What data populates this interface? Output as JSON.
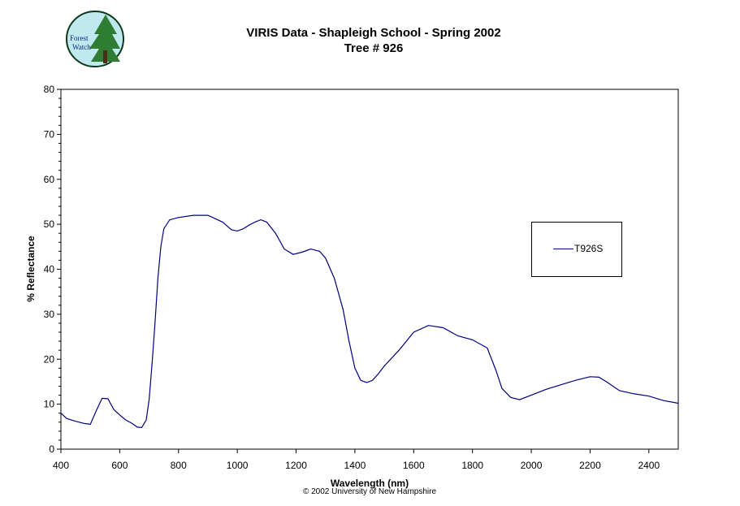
{
  "header": {
    "title": "VIRIS Data - Shapleigh School - Spring 2002",
    "subtitle": "Tree # 926",
    "logo_text_1": "Forest",
    "logo_text_2": "Watch"
  },
  "footer": {
    "copyright": "© 2002 University of New Hampshire"
  },
  "colors": {
    "series": "#000080",
    "logo_sky": "#bfe9ee",
    "logo_tree": "#2e7d32"
  },
  "chart_data": {
    "type": "line",
    "title": "VIRIS Data - Shapleigh School - Spring 2002",
    "subtitle": "Tree # 926",
    "xlabel": "Wavelength (nm)",
    "ylabel": "% Reflectance",
    "xlim": [
      400,
      2500
    ],
    "ylim": [
      0,
      80
    ],
    "xticks": [
      400,
      600,
      800,
      1000,
      1200,
      1400,
      1600,
      1800,
      2000,
      2200,
      2400
    ],
    "yticks": [
      0,
      10,
      20,
      30,
      40,
      50,
      60,
      70,
      80
    ],
    "grid": false,
    "legend_position": "right",
    "series": [
      {
        "name": "T926S",
        "x": [
          400,
          420,
          450,
          480,
          500,
          520,
          540,
          560,
          580,
          600,
          620,
          640,
          660,
          675,
          690,
          700,
          710,
          720,
          730,
          740,
          750,
          770,
          800,
          850,
          900,
          950,
          980,
          1000,
          1020,
          1040,
          1060,
          1080,
          1100,
          1130,
          1160,
          1190,
          1220,
          1250,
          1280,
          1300,
          1330,
          1360,
          1380,
          1400,
          1420,
          1440,
          1460,
          1480,
          1500,
          1550,
          1600,
          1650,
          1700,
          1750,
          1800,
          1850,
          1880,
          1900,
          1930,
          1960,
          2000,
          2050,
          2100,
          2150,
          2200,
          2230,
          2260,
          2300,
          2350,
          2400,
          2450,
          2500
        ],
        "y": [
          8,
          6.8,
          6.2,
          5.7,
          5.5,
          8.5,
          11.3,
          11.2,
          8.8,
          7.6,
          6.5,
          5.8,
          4.9,
          4.8,
          6.5,
          11,
          19,
          28,
          38,
          45,
          49,
          51,
          51.5,
          52,
          52,
          50.5,
          48.8,
          48.5,
          49,
          49.8,
          50.5,
          51,
          50.5,
          48,
          44.5,
          43.3,
          43.8,
          44.5,
          44,
          42.5,
          38,
          31,
          24,
          18,
          15.3,
          14.8,
          15.3,
          16.8,
          18.5,
          22,
          26,
          27.5,
          27,
          25.2,
          24.3,
          22.5,
          17.5,
          13.5,
          11.5,
          11,
          12,
          13.3,
          14.3,
          15.3,
          16.1,
          16,
          14.8,
          13,
          12.3,
          11.8,
          10.8,
          10.2
        ]
      }
    ]
  }
}
